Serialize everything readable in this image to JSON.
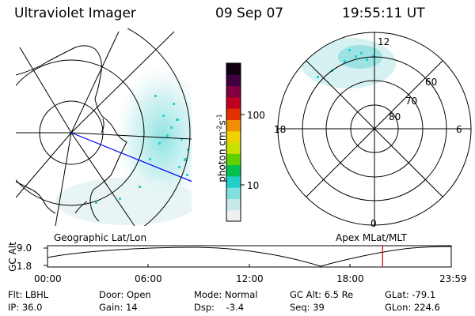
{
  "header": {
    "title": "Ultraviolet Imager",
    "date": "09 Sep 07",
    "time": "19:55:11 UT"
  },
  "colorbar": {
    "unit_label": "photon cm",
    "unit_exp1": "-2",
    "unit_mid": "s",
    "unit_exp2": "-1",
    "tick_100": "100",
    "tick_10": "10",
    "colors": [
      "#f0f0f0",
      "#c8e8e8",
      "#80e0e0",
      "#20d0c8",
      "#00c050",
      "#60d000",
      "#c8e000",
      "#f0d000",
      "#f09000",
      "#e03000",
      "#c00020",
      "#800040",
      "#400040",
      "#100010"
    ]
  },
  "map_left": {
    "label": "Geographic Lat/Lon",
    "line_color": "#0000ff"
  },
  "map_right": {
    "label": "Apex  MLat/MLT",
    "mlt_12": "12",
    "mlt_18": "18",
    "mlt_6": "6",
    "mlt_0": "0",
    "lat_60": "60",
    "lat_70": "70",
    "lat_80": "80"
  },
  "altitude_plot": {
    "y_label": "GC Alt",
    "y_max": "9.0",
    "y_min": "1.8",
    "x_ticks": [
      "00:00",
      "06:00",
      "12:00",
      "18:00",
      "23:59"
    ],
    "marker_color": "#cc0000",
    "marker_time_hours": 19.92
  },
  "info": {
    "flt": "Flt: LBHL",
    "ip": "IP: 36.0",
    "door": "Door: Open",
    "gain": "Gain: 14",
    "mode": "Mode: Normal",
    "dsp": "Dsp:    -3.4",
    "gcalt": "GC Alt: 6.5 Re",
    "seq": "Seq: 39",
    "glat": "GLat: -79.1",
    "glon": "GLon: 224.6"
  }
}
